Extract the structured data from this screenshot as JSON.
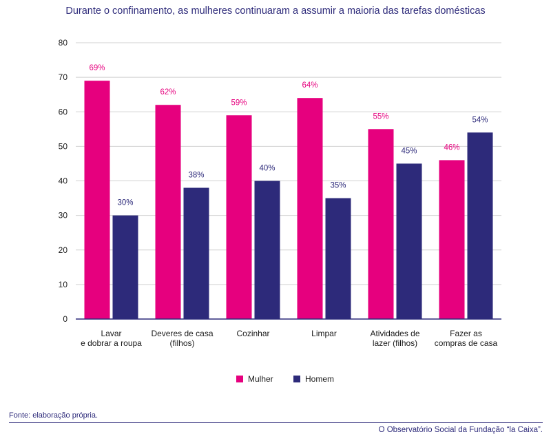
{
  "title": "Durante o confinamento, as mulheres continuaram a assumir a maioria das tarefas domésticas",
  "source": "Fonte: elaboração própria.",
  "credit": "O Observatório Social da Fundação “la Caixa”.",
  "colors": {
    "mulher": "#e6007e",
    "homem": "#2d2a7a",
    "text": "#2d2a7a",
    "grid": "#d0d0d0"
  },
  "chart_data": {
    "type": "bar",
    "title": "Durante o confinamento, as mulheres continuaram a assumir a maioria das tarefas domésticas",
    "categories": [
      [
        "Lavar",
        "e dobrar a roupa"
      ],
      [
        "Deveres de casa",
        "(filhos)"
      ],
      [
        "Cozinhar"
      ],
      [
        "Limpar"
      ],
      [
        "Atividades de",
        "lazer (filhos)"
      ],
      [
        "Fazer as",
        "compras de casa"
      ]
    ],
    "series": [
      {
        "name": "Mulher",
        "values": [
          69,
          62,
          59,
          64,
          55,
          46
        ],
        "labels": [
          "69%",
          "62%",
          "59%",
          "64%",
          "55%",
          "46%"
        ]
      },
      {
        "name": "Homem",
        "values": [
          30,
          38,
          40,
          35,
          45,
          54
        ],
        "labels": [
          "30%",
          "38%",
          "40%",
          "35%",
          "45%",
          "54%"
        ]
      }
    ],
    "ylim": [
      0,
      80
    ],
    "yticks": [
      0,
      10,
      20,
      30,
      40,
      50,
      60,
      70,
      80
    ],
    "grid": true,
    "legend": "bottom-center"
  }
}
